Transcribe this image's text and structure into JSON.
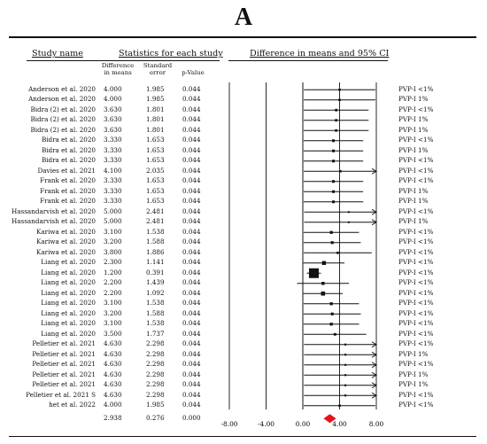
{
  "panel_label": "A",
  "headers": {
    "study_name": "Study name",
    "statistics": "Statistics for each study",
    "plot": "Difference in means and 95% CI",
    "col_diff": [
      "Difference",
      "in means"
    ],
    "col_se": [
      "Standard",
      "error"
    ],
    "col_p": "p-Value"
  },
  "chart_data": {
    "type": "forest",
    "xlim": [
      -8,
      8
    ],
    "x_ticks": [
      "-8.00",
      "-4.00",
      "0.00",
      "4.00",
      "8.00"
    ],
    "x_tick_values": [
      -8,
      -4,
      0,
      4,
      8
    ],
    "studies": [
      {
        "study": "Anderson et al. 2020",
        "diff": "4.000",
        "se": "1.985",
        "p": "0.044",
        "group": "PVP-I <1%",
        "d": 4.0,
        "s": 1.985
      },
      {
        "study": "Anderson et al. 2020",
        "diff": "4.000",
        "se": "1.985",
        "p": "0.044",
        "group": "PVP-I 1%",
        "d": 4.0,
        "s": 1.985
      },
      {
        "study": "Bidra (2) et al. 2020",
        "diff": "3.630",
        "se": "1.801",
        "p": "0.044",
        "group": "PVP-I <1%",
        "d": 3.63,
        "s": 1.801
      },
      {
        "study": "Bidra (2) et al. 2020",
        "diff": "3.630",
        "se": "1.801",
        "p": "0.044",
        "group": "PVP-I 1%",
        "d": 3.63,
        "s": 1.801
      },
      {
        "study": "Bidra (2) et al. 2020",
        "diff": "3.630",
        "se": "1.801",
        "p": "0.044",
        "group": "PVP-I 1%",
        "d": 3.63,
        "s": 1.801
      },
      {
        "study": "Bidra et al. 2020",
        "diff": "3.330",
        "se": "1.653",
        "p": "0.044",
        "group": "PVP-I <1%",
        "d": 3.33,
        "s": 1.653
      },
      {
        "study": "Bidra et al. 2020",
        "diff": "3.330",
        "se": "1.653",
        "p": "0.044",
        "group": "PVP-I 1%",
        "d": 3.33,
        "s": 1.653
      },
      {
        "study": "Bidra et al. 2020",
        "diff": "3.330",
        "se": "1.653",
        "p": "0.044",
        "group": "PVP-I <1%",
        "d": 3.33,
        "s": 1.653
      },
      {
        "study": "Davies et al. 2021",
        "diff": "4.100",
        "se": "2.035",
        "p": "0.044",
        "group": "PVP-I <1%",
        "d": 4.1,
        "s": 2.035
      },
      {
        "study": "Frank et al. 2020",
        "diff": "3.330",
        "se": "1.653",
        "p": "0.044",
        "group": "PVP-I <1%",
        "d": 3.33,
        "s": 1.653
      },
      {
        "study": "Frank et al. 2020",
        "diff": "3.330",
        "se": "1.653",
        "p": "0.044",
        "group": "PVP-I 1%",
        "d": 3.33,
        "s": 1.653
      },
      {
        "study": "Frank et al. 2020",
        "diff": "3.330",
        "se": "1.653",
        "p": "0.044",
        "group": "PVP-I 1%",
        "d": 3.33,
        "s": 1.653
      },
      {
        "study": "Hassandarvish et al. 2020",
        "diff": "5.000",
        "se": "2.481",
        "p": "0.044",
        "group": "PVP-I <1%",
        "d": 5.0,
        "s": 2.481
      },
      {
        "study": "Hassandarvish et al. 2020",
        "diff": "5.000",
        "se": "2.481",
        "p": "0.044",
        "group": "PVP-I 1%",
        "d": 5.0,
        "s": 2.481
      },
      {
        "study": "Kariwa et al. 2020",
        "diff": "3.100",
        "se": "1.538",
        "p": "0.044",
        "group": "PVP-I <1%",
        "d": 3.1,
        "s": 1.538
      },
      {
        "study": "Kariwa et al. 2020",
        "diff": "3.200",
        "se": "1.588",
        "p": "0.044",
        "group": "PVP-I <1%",
        "d": 3.2,
        "s": 1.588
      },
      {
        "study": "Kariwa et al. 2020",
        "diff": "3.800",
        "se": "1.886",
        "p": "0.044",
        "group": "PVP-I <1%",
        "d": 3.8,
        "s": 1.886
      },
      {
        "study": "Liang et al. 2020",
        "diff": "2.300",
        "se": "1.141",
        "p": "0.044",
        "group": "PVP-I <1%",
        "d": 2.3,
        "s": 1.141
      },
      {
        "study": "Liang et al. 2020",
        "diff": "1.200",
        "se": "0.391",
        "p": "0.044",
        "group": "PVP-I <1%",
        "d": 1.2,
        "s": 0.391
      },
      {
        "study": "Liang et al. 2020",
        "diff": "2.200",
        "se": "1.439",
        "p": "0.044",
        "group": "PVP-I <1%",
        "d": 2.2,
        "s": 1.439
      },
      {
        "study": "Liang et al. 2020",
        "diff": "2.200",
        "se": "1.092",
        "p": "0.044",
        "group": "PVP-I <1%",
        "d": 2.2,
        "s": 1.092
      },
      {
        "study": "Liang et al. 2020",
        "diff": "3.100",
        "se": "1.538",
        "p": "0.044",
        "group": "PVP-I <1%",
        "d": 3.1,
        "s": 1.538
      },
      {
        "study": "Liang et al. 2020",
        "diff": "3.200",
        "se": "1.588",
        "p": "0.044",
        "group": "PVP-I <1%",
        "d": 3.2,
        "s": 1.588
      },
      {
        "study": "Liang et al. 2020",
        "diff": "3.100",
        "se": "1.538",
        "p": "0.044",
        "group": "PVP-I <1%",
        "d": 3.1,
        "s": 1.538
      },
      {
        "study": "Liang et al. 2020",
        "diff": "3.500",
        "se": "1.737",
        "p": "0.044",
        "group": "PVP-I <1%",
        "d": 3.5,
        "s": 1.737
      },
      {
        "study": "Pelletier et al. 2021",
        "diff": "4.630",
        "se": "2.298",
        "p": "0.044",
        "group": "PVP-I <1%",
        "d": 4.63,
        "s": 2.298
      },
      {
        "study": "Pelletier et al. 2021",
        "diff": "4.630",
        "se": "2.298",
        "p": "0.044",
        "group": "PVP-I 1%",
        "d": 4.63,
        "s": 2.298
      },
      {
        "study": "Pelletier et al. 2021",
        "diff": "4.630",
        "se": "2.298",
        "p": "0.044",
        "group": "PVP-I <1%",
        "d": 4.63,
        "s": 2.298
      },
      {
        "study": "Pelletier et al. 2021",
        "diff": "4.630",
        "se": "2.298",
        "p": "0.044",
        "group": "PVP-I 1%",
        "d": 4.63,
        "s": 2.298
      },
      {
        "study": "Pelletier et al. 2021",
        "diff": "4.630",
        "se": "2.298",
        "p": "0.044",
        "group": "PVP-I 1%",
        "d": 4.63,
        "s": 2.298
      },
      {
        "study": "Pelletier et al. 2021 S",
        "diff": "4.630",
        "se": "2.298",
        "p": "0.044",
        "group": "PVP-I <1%",
        "d": 4.63,
        "s": 2.298
      },
      {
        "study": "het et al. 2022",
        "diff": "4.000",
        "se": "1.985",
        "p": "0.044",
        "group": "PVP-I <1%",
        "d": 4.0,
        "s": 1.985
      }
    ],
    "summary": {
      "diff": "2.938",
      "se": "0.276",
      "p": "0.000",
      "d": 2.938,
      "s": 0.276
    },
    "colors": {
      "summary": "#e8121b",
      "ink": "#111111"
    }
  }
}
